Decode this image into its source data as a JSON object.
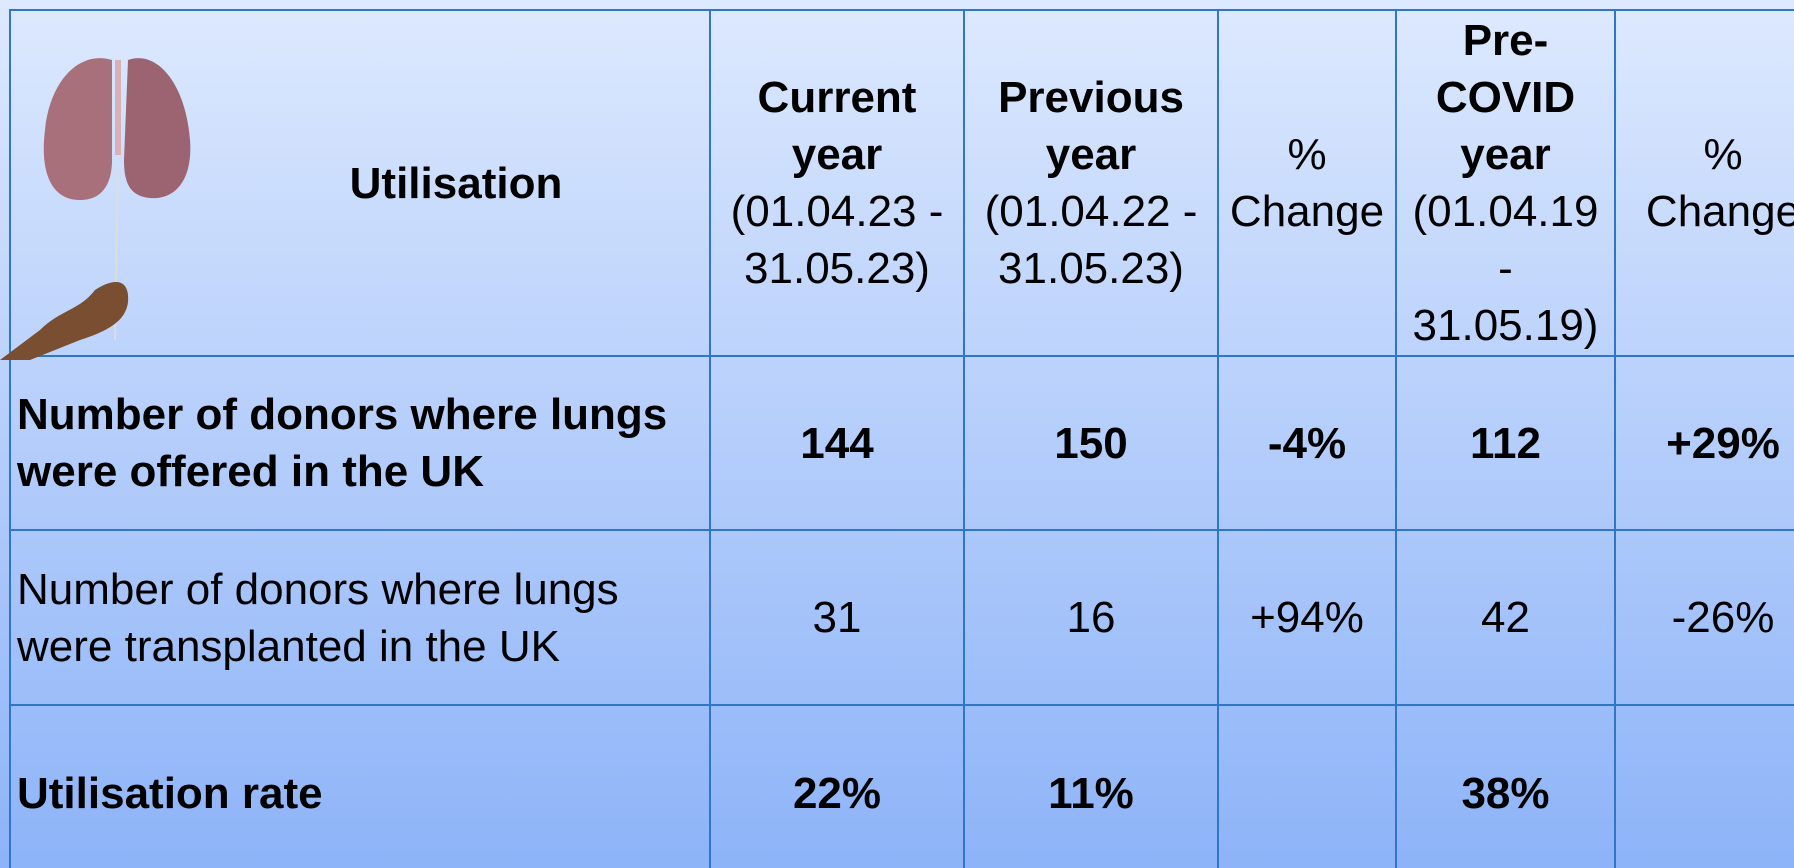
{
  "table": {
    "header": [
      {
        "bold": "Utilisation"
      },
      {
        "bold": "Current year",
        "normal": "(01.04.23 - 31.05.23)"
      },
      {
        "bold": "Previous year",
        "normal": "(01.04.22 - 31.05.23)"
      },
      {
        "normal": "% Change"
      },
      {
        "bold": "Pre-COVID year",
        "normal": "(01.04.19 - 31.05.19)"
      },
      {
        "normal": "% Change"
      }
    ],
    "rows": [
      {
        "bold": true,
        "cells": [
          "Number of donors where lungs were offered in the UK",
          "144",
          "150",
          "-4%",
          "112",
          "+29%"
        ]
      },
      {
        "bold": false,
        "cells": [
          "Number of donors where lungs were transplanted in the UK",
          "31",
          "16",
          "+94%",
          "42",
          "-26%"
        ]
      },
      {
        "bold": true,
        "cells": [
          "Utilisation rate",
          "22%",
          "11%",
          null,
          "38%",
          null
        ]
      }
    ]
  }
}
